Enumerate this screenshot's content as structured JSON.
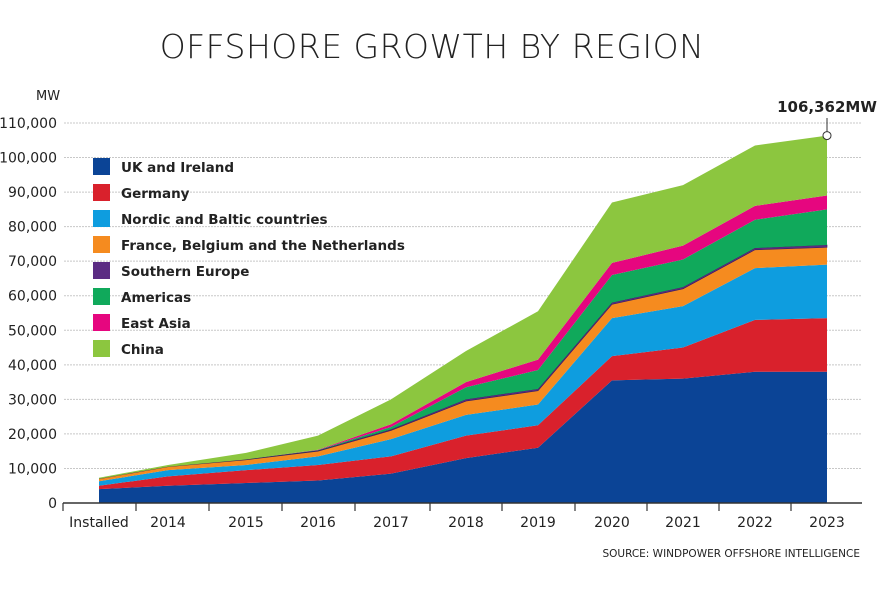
{
  "chart_data": {
    "type": "area",
    "stacked": true,
    "title": "OFFSHORE GROWTH BY REGION",
    "ylabel": "MW",
    "ylim": [
      0,
      110000
    ],
    "yticks": [
      0,
      10000,
      20000,
      30000,
      40000,
      50000,
      60000,
      70000,
      80000,
      90000,
      100000,
      110000
    ],
    "ytick_labels": [
      "0",
      "10,000",
      "20,000",
      "30,000",
      "40,000",
      "50,000",
      "60,000",
      "70,000",
      "80,000",
      "90,000",
      "100,000",
      "110,000"
    ],
    "grid": true,
    "legend_position": "top-left",
    "categories": [
      "Installed",
      "2014",
      "2015",
      "2016",
      "2017",
      "2018",
      "2019",
      "2020",
      "2021",
      "2022",
      "2023"
    ],
    "series": [
      {
        "name": "UK and Ireland",
        "color": "#0b4496",
        "values": [
          4000,
          5000,
          5800,
          6500,
          8500,
          13000,
          16000,
          35500,
          36000,
          38000,
          38000
        ]
      },
      {
        "name": "Germany",
        "color": "#d9212c",
        "values": [
          1000,
          2700,
          3700,
          4500,
          5000,
          6500,
          6500,
          7000,
          9000,
          15000,
          15500
        ]
      },
      {
        "name": "Nordic and Baltic countries",
        "color": "#0e9ddf",
        "values": [
          1300,
          1800,
          1500,
          2500,
          5000,
          6000,
          6000,
          11000,
          12000,
          15000,
          15500
        ]
      },
      {
        "name": "France, Belgium and the Netherlands",
        "color": "#f58b1f",
        "values": [
          700,
          1000,
          1500,
          1500,
          2500,
          4000,
          4000,
          4000,
          5000,
          5300,
          5000
        ]
      },
      {
        "name": "Southern Europe",
        "color": "#5b2c83",
        "values": [
          0,
          0,
          100,
          200,
          300,
          500,
          500,
          500,
          500,
          500,
          700
        ]
      },
      {
        "name": "Americas",
        "color": "#10a95b",
        "values": [
          0,
          0,
          0,
          100,
          700,
          3500,
          5500,
          8000,
          8000,
          8200,
          10300
        ]
      },
      {
        "name": "East Asia",
        "color": "#e6067f",
        "values": [
          0,
          0,
          0,
          100,
          800,
          1500,
          3000,
          3500,
          4000,
          4000,
          4000
        ]
      },
      {
        "name": "China",
        "color": "#8cc63f",
        "values": [
          300,
          500,
          1900,
          4100,
          7200,
          9000,
          14000,
          17500,
          17500,
          17500,
          17362
        ]
      }
    ],
    "annotation": "106,362MW",
    "source": "SOURCE: WINDPOWER OFFSHORE INTELLIGENCE"
  }
}
